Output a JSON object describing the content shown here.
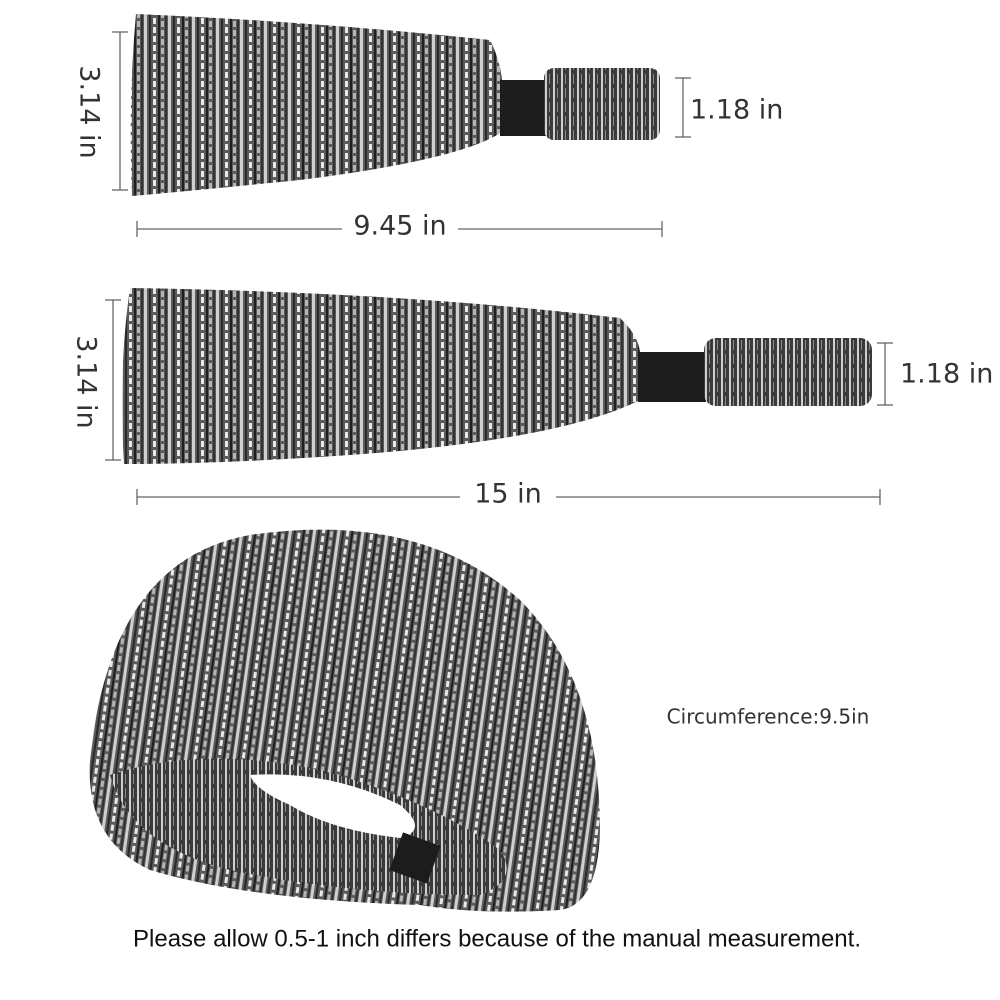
{
  "headbands": [
    {
      "height_label": "3.14 in",
      "end_label": "1.18 in",
      "length_label": "9.45 in"
    },
    {
      "height_label": "3.14 in",
      "end_label": "1.18 in",
      "length_label": "15 in"
    }
  ],
  "circumference": "Circumference:9.5in",
  "note": "Please allow 0.5-1 inch differs because of the manual measurement."
}
